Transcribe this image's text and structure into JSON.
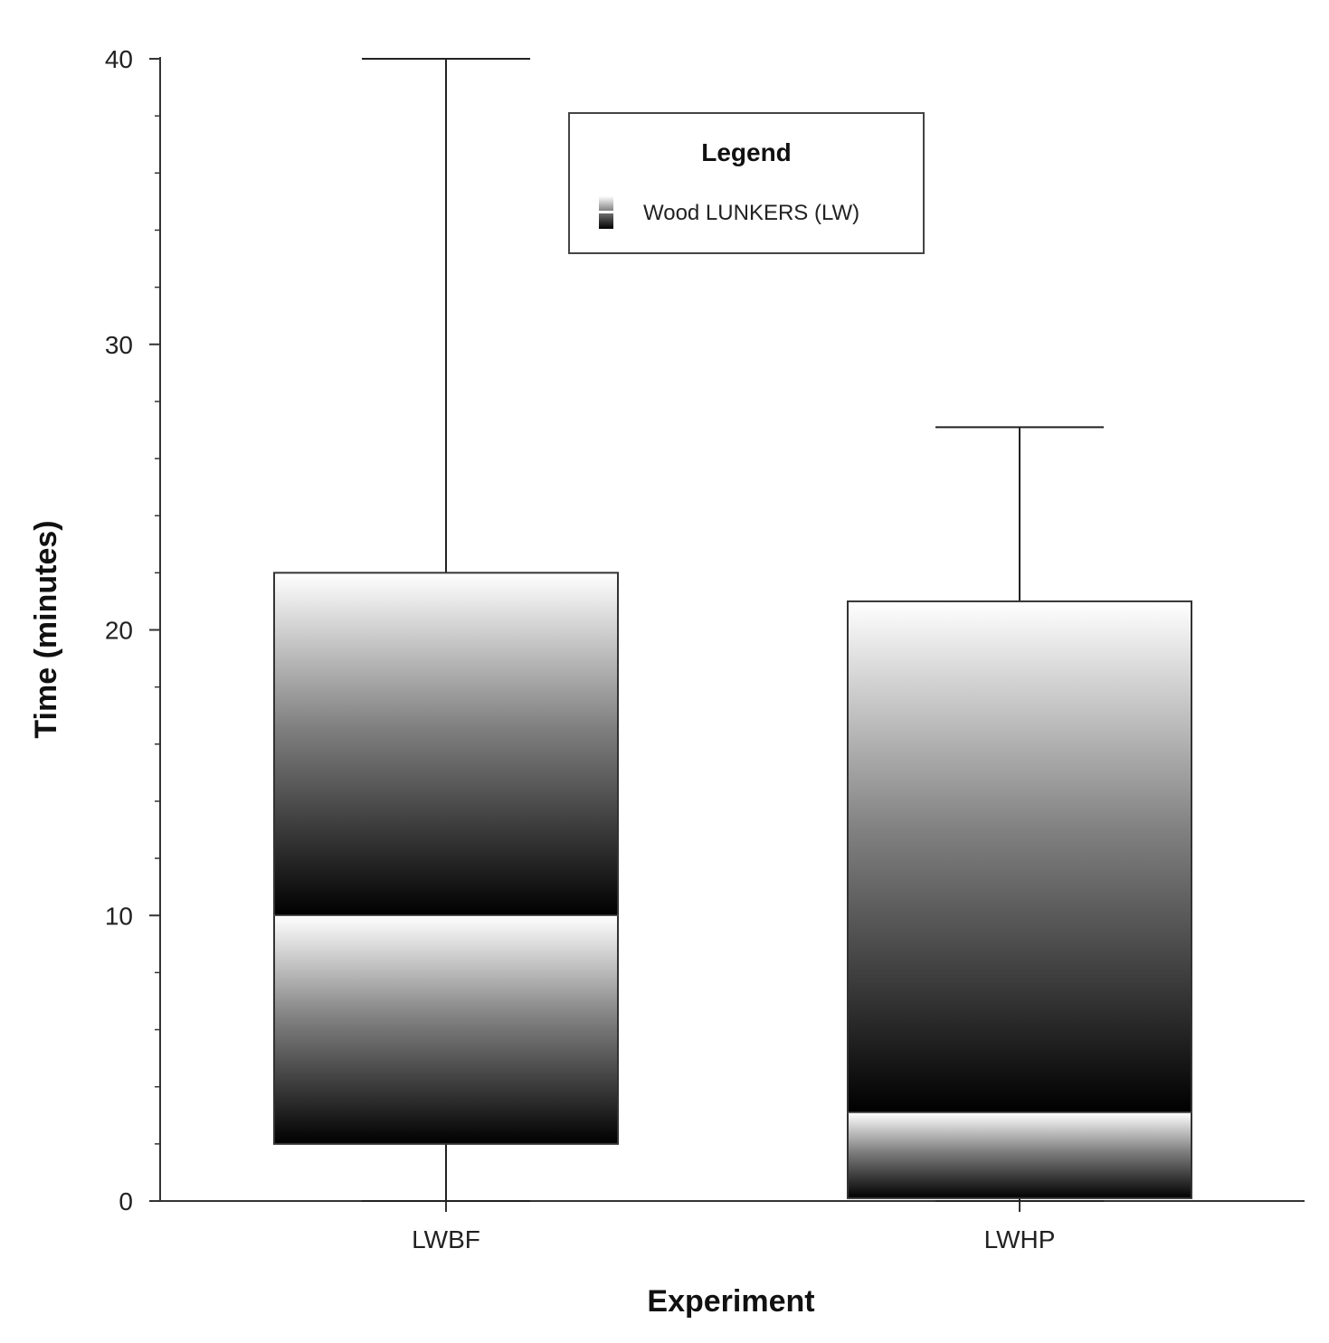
{
  "chart_data": {
    "type": "box",
    "title": "",
    "xlabel": "Experiment",
    "ylabel": "Time (minutes)",
    "ylim": [
      0,
      40
    ],
    "yticks": [
      "0",
      "10",
      "20",
      "30",
      "40"
    ],
    "categories": [
      "LWBF",
      "LWHP"
    ],
    "series": [
      {
        "name": "Wood LUNKERS (LW)",
        "boxes": [
          {
            "category": "LWBF",
            "min": 0,
            "q1": 2,
            "median": 10,
            "q3": 22,
            "max": 40
          },
          {
            "category": "LWHP",
            "min": 0,
            "q1": 0.1,
            "median": 3.1,
            "q3": 21,
            "max": 27.1
          }
        ]
      }
    ],
    "grid": false,
    "legend": {
      "title": "Legend",
      "placement": "top-center"
    }
  }
}
